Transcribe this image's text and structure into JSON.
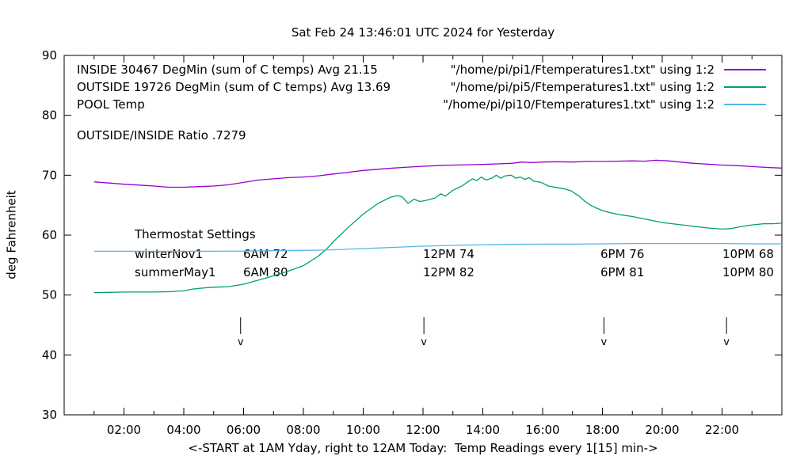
{
  "legend": {
    "rows": [
      {
        "label": "INSIDE 30467 DegMin (sum of C temps) Avg 21.15",
        "file": "\"/home/pi/pi1/Ftemperatures1.txt\" using 1:2"
      },
      {
        "label": "OUTSIDE 19726 DegMin (sum of C temps) Avg 13.69",
        "file": "\"/home/pi/pi5/Ftemperatures1.txt\" using 1:2"
      },
      {
        "label": "POOL Temp",
        "file": "\"/home/pi/pi10/Ftemperatures1.txt\" using 1:2"
      }
    ]
  },
  "ratio_text": "OUTSIDE/INSIDE Ratio .7279",
  "thermostat": {
    "heading": "Thermostat Settings",
    "rows": [
      {
        "season": "winterNov1",
        "settings": [
          "6AM 72",
          "12PM 74",
          "6PM 76",
          "10PM 68"
        ]
      },
      {
        "season": "summerMay1",
        "settings": [
          "6AM 80",
          "12PM 82",
          "6PM 81",
          "10PM 80"
        ]
      }
    ]
  },
  "chart_data": {
    "type": "line",
    "title": "Sat Feb 24 13:46:01 UTC 2024 for Yesterday",
    "xlabel": "<-START at 1AM Yday, right to 12AM Today:  Temp Readings every 1[15] min->",
    "ylabel": "deg Fahrenheit",
    "xlim": [
      0,
      24
    ],
    "ylim": [
      30,
      90
    ],
    "grid": false,
    "legend_position": "top",
    "x_major_ticks": [
      {
        "t": 2,
        "label": "02:00"
      },
      {
        "t": 4,
        "label": "04:00"
      },
      {
        "t": 6,
        "label": "06:00"
      },
      {
        "t": 8,
        "label": "08:00"
      },
      {
        "t": 10,
        "label": "10:00"
      },
      {
        "t": 12,
        "label": "12:00"
      },
      {
        "t": 14,
        "label": "14:00"
      },
      {
        "t": 16,
        "label": "16:00"
      },
      {
        "t": 18,
        "label": "18:00"
      },
      {
        "t": 20,
        "label": "20:00"
      },
      {
        "t": 22,
        "label": "22:00"
      }
    ],
    "x_minor_ticks": [
      1,
      3,
      5,
      7,
      9,
      11,
      13,
      15,
      17,
      19,
      21,
      23
    ],
    "y_ticks": [
      {
        "f": 30,
        "label": "30"
      },
      {
        "f": 40,
        "label": "40"
      },
      {
        "f": 50,
        "label": "50"
      },
      {
        "f": 60,
        "label": "60"
      },
      {
        "f": 70,
        "label": "70"
      },
      {
        "f": 80,
        "label": "80"
      },
      {
        "f": 90,
        "label": "90"
      }
    ],
    "event_arrows": {
      "hours": [
        5.9,
        12.03,
        18.05,
        22.15
      ],
      "from_f": 46.3,
      "to_f": 43.5,
      "glyph": "v"
    },
    "series": [
      {
        "name": "INSIDE",
        "color": "#9400d3",
        "points": [
          [
            1,
            68.9
          ],
          [
            1.5,
            68.7
          ],
          [
            2,
            68.5
          ],
          [
            2.5,
            68.35
          ],
          [
            3,
            68.2
          ],
          [
            3.5,
            68.0
          ],
          [
            4,
            68.0
          ],
          [
            4.5,
            68.1
          ],
          [
            5,
            68.2
          ],
          [
            5.5,
            68.4
          ],
          [
            6,
            68.8
          ],
          [
            6.5,
            69.2
          ],
          [
            7,
            69.4
          ],
          [
            7.5,
            69.6
          ],
          [
            8,
            69.7
          ],
          [
            8.5,
            69.9
          ],
          [
            9,
            70.2
          ],
          [
            9.5,
            70.5
          ],
          [
            10,
            70.8
          ],
          [
            10.5,
            71.0
          ],
          [
            11,
            71.2
          ],
          [
            11.5,
            71.35
          ],
          [
            12,
            71.5
          ],
          [
            12.5,
            71.6
          ],
          [
            13,
            71.7
          ],
          [
            13.5,
            71.75
          ],
          [
            14,
            71.8
          ],
          [
            14.5,
            71.9
          ],
          [
            15,
            72.0
          ],
          [
            15.3,
            72.2
          ],
          [
            15.6,
            72.1
          ],
          [
            16,
            72.2
          ],
          [
            16.5,
            72.25
          ],
          [
            17,
            72.2
          ],
          [
            17.5,
            72.3
          ],
          [
            18,
            72.3
          ],
          [
            18.5,
            72.35
          ],
          [
            19,
            72.4
          ],
          [
            19.4,
            72.35
          ],
          [
            19.8,
            72.5
          ],
          [
            20.2,
            72.4
          ],
          [
            20.6,
            72.2
          ],
          [
            21,
            72.0
          ],
          [
            21.5,
            71.85
          ],
          [
            22,
            71.7
          ],
          [
            22.5,
            71.6
          ],
          [
            23,
            71.45
          ],
          [
            23.5,
            71.3
          ],
          [
            24,
            71.2
          ]
        ]
      },
      {
        "name": "OUTSIDE",
        "color": "#009e73",
        "points": [
          [
            1,
            50.4
          ],
          [
            1.5,
            50.45
          ],
          [
            2,
            50.5
          ],
          [
            2.5,
            50.5
          ],
          [
            3,
            50.5
          ],
          [
            3.5,
            50.55
          ],
          [
            4,
            50.7
          ],
          [
            4.3,
            51.0
          ],
          [
            4.7,
            51.2
          ],
          [
            5,
            51.3
          ],
          [
            5.5,
            51.4
          ],
          [
            6,
            51.8
          ],
          [
            6.5,
            52.5
          ],
          [
            7,
            53.2
          ],
          [
            7.5,
            54.0
          ],
          [
            8,
            54.9
          ],
          [
            8.5,
            56.5
          ],
          [
            8.8,
            57.8
          ],
          [
            9,
            58.9
          ],
          [
            9.5,
            61.3
          ],
          [
            10,
            63.5
          ],
          [
            10.5,
            65.3
          ],
          [
            10.9,
            66.3
          ],
          [
            11.15,
            66.6
          ],
          [
            11.3,
            66.4
          ],
          [
            11.5,
            65.3
          ],
          [
            11.7,
            66.0
          ],
          [
            11.9,
            65.6
          ],
          [
            12.1,
            65.8
          ],
          [
            12.4,
            66.2
          ],
          [
            12.6,
            66.9
          ],
          [
            12.75,
            66.5
          ],
          [
            13,
            67.5
          ],
          [
            13.3,
            68.2
          ],
          [
            13.5,
            68.9
          ],
          [
            13.65,
            69.4
          ],
          [
            13.8,
            69.1
          ],
          [
            13.95,
            69.7
          ],
          [
            14.1,
            69.2
          ],
          [
            14.3,
            69.5
          ],
          [
            14.45,
            70.0
          ],
          [
            14.6,
            69.5
          ],
          [
            14.75,
            69.9
          ],
          [
            14.95,
            70.0
          ],
          [
            15.1,
            69.5
          ],
          [
            15.25,
            69.7
          ],
          [
            15.4,
            69.3
          ],
          [
            15.55,
            69.6
          ],
          [
            15.7,
            69.0
          ],
          [
            15.95,
            68.8
          ],
          [
            16.2,
            68.2
          ],
          [
            16.5,
            67.9
          ],
          [
            16.75,
            67.7
          ],
          [
            16.95,
            67.4
          ],
          [
            17.1,
            66.9
          ],
          [
            17.25,
            66.4
          ],
          [
            17.4,
            65.7
          ],
          [
            17.6,
            65.0
          ],
          [
            17.8,
            64.5
          ],
          [
            18,
            64.1
          ],
          [
            18.3,
            63.7
          ],
          [
            18.6,
            63.4
          ],
          [
            19,
            63.1
          ],
          [
            19.5,
            62.6
          ],
          [
            20,
            62.1
          ],
          [
            20.5,
            61.8
          ],
          [
            21,
            61.5
          ],
          [
            21.5,
            61.2
          ],
          [
            22,
            61.0
          ],
          [
            22.3,
            61.1
          ],
          [
            22.6,
            61.4
          ],
          [
            23,
            61.7
          ],
          [
            23.4,
            61.9
          ],
          [
            23.7,
            61.9
          ],
          [
            24,
            62.0
          ]
        ]
      },
      {
        "name": "POOL",
        "color": "#56b4e9",
        "points": [
          [
            1,
            57.3
          ],
          [
            2,
            57.3
          ],
          [
            3,
            57.3
          ],
          [
            4,
            57.3
          ],
          [
            5,
            57.3
          ],
          [
            6,
            57.35
          ],
          [
            7,
            57.4
          ],
          [
            8,
            57.45
          ],
          [
            8.7,
            57.5
          ],
          [
            9,
            57.55
          ],
          [
            10,
            57.75
          ],
          [
            11,
            57.95
          ],
          [
            12,
            58.15
          ],
          [
            13,
            58.3
          ],
          [
            14,
            58.4
          ],
          [
            15,
            58.45
          ],
          [
            16,
            58.5
          ],
          [
            17,
            58.5
          ],
          [
            18,
            58.55
          ],
          [
            19,
            58.6
          ],
          [
            20,
            58.6
          ],
          [
            21,
            58.6
          ],
          [
            22,
            58.6
          ],
          [
            23,
            58.55
          ],
          [
            24,
            58.55
          ]
        ]
      }
    ]
  }
}
